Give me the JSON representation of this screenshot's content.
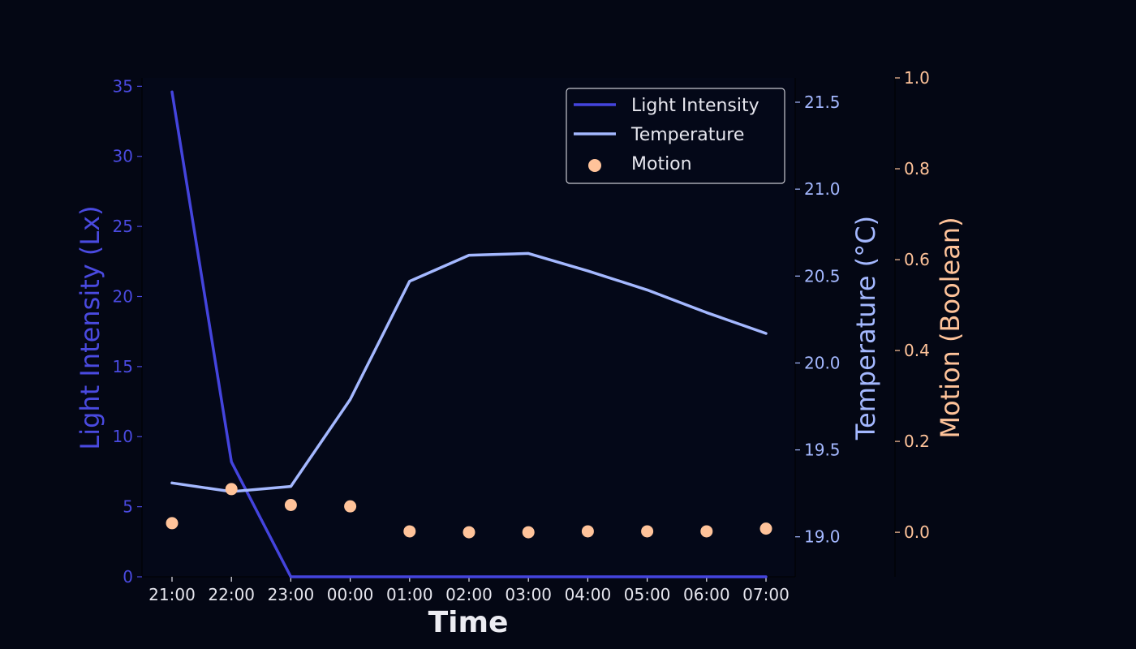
{
  "chart_data": {
    "type": "line",
    "xlabel": "Time",
    "categories": [
      "21:00",
      "22:00",
      "23:00",
      "00:00",
      "01:00",
      "02:00",
      "03:00",
      "04:00",
      "05:00",
      "06:00",
      "07:00"
    ],
    "series": [
      {
        "name": "Light Intensity",
        "kind": "line",
        "axis": "left",
        "color": "#4444dd",
        "values": [
          34.6,
          8.2,
          0,
          0,
          0,
          0,
          0,
          0,
          0,
          0,
          0
        ]
      },
      {
        "name": "Temperature",
        "kind": "line",
        "axis": "right",
        "color": "#a4b8ff",
        "values": [
          19.31,
          19.26,
          19.29,
          19.79,
          20.47,
          20.62,
          20.63,
          20.53,
          20.42,
          20.29,
          20.17
        ]
      },
      {
        "name": "Motion",
        "kind": "scatter",
        "axis": "right2",
        "color": "#ffc39a",
        "values": [
          0.02,
          0.095,
          0.06,
          0.057,
          0.002,
          0.0,
          0.0,
          0.002,
          0.002,
          0.002,
          0.008
        ]
      }
    ],
    "axes": {
      "left": {
        "label": "Light Intensity (Lx)",
        "color": "#4a4ae0",
        "ylim": [
          0,
          35.6
        ],
        "ticks": [
          0,
          5,
          10,
          15,
          20,
          25,
          30,
          35
        ]
      },
      "right": {
        "label": "Temperature (°C)",
        "color": "#a4b8ff",
        "ylim": [
          18.77,
          21.64
        ],
        "ticks": [
          19.0,
          19.5,
          20.0,
          20.5,
          21.0,
          21.5
        ],
        "tick_labels": [
          "19.0",
          "19.5",
          "20.0",
          "20.5",
          "21.0",
          "21.5"
        ]
      },
      "right2": {
        "label": "Motion (Boolean)",
        "color": "#ffc39a",
        "ylim": [
          -0.098,
          1.0
        ],
        "ticks": [
          0.0,
          0.2,
          0.4,
          0.6,
          0.8,
          1.0
        ],
        "tick_labels": [
          "0.0",
          "0.2",
          "0.4",
          "0.6",
          "0.8",
          "1.0"
        ]
      }
    },
    "legend": {
      "position": "top-right",
      "entries": [
        "Light Intensity",
        "Temperature",
        "Motion"
      ]
    },
    "grid": false
  }
}
